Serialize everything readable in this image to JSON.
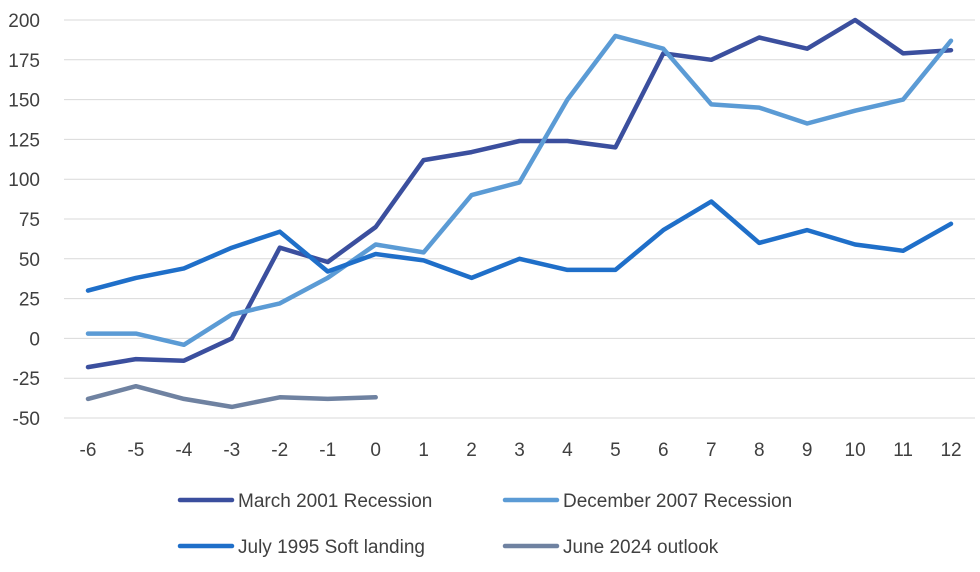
{
  "chart_data": {
    "type": "line",
    "title": "",
    "xlabel": "",
    "ylabel": "",
    "x": [
      -6,
      -5,
      -4,
      -3,
      -2,
      -1,
      0,
      1,
      2,
      3,
      4,
      5,
      6,
      7,
      8,
      9,
      10,
      11,
      12
    ],
    "ylim": [
      -50,
      200
    ],
    "yticks": [
      -50,
      -25,
      0,
      25,
      50,
      75,
      100,
      125,
      150,
      175,
      200
    ],
    "grid": "horizontal",
    "legend_position": "bottom",
    "series": [
      {
        "name": "March 2001 Recession",
        "color": "#3B4F9E",
        "values": [
          -18,
          -13,
          -14,
          0,
          57,
          48,
          70,
          112,
          117,
          124,
          124,
          120,
          179,
          175,
          189,
          182,
          200,
          179,
          181
        ]
      },
      {
        "name": "December 2007 Recession",
        "color": "#5B9BD5",
        "values": [
          3,
          3,
          -4,
          15,
          22,
          38,
          59,
          54,
          90,
          98,
          150,
          190,
          182,
          147,
          145,
          135,
          143,
          150,
          187
        ]
      },
      {
        "name": "July 1995 Soft landing",
        "color": "#1F6FC9",
        "values": [
          30,
          38,
          44,
          57,
          67,
          42,
          53,
          49,
          38,
          50,
          43,
          43,
          68,
          86,
          60,
          68,
          59,
          55,
          72
        ]
      },
      {
        "name": "June 2024 outlook",
        "color": "#6F82A1",
        "values": [
          -38,
          -30,
          -38,
          -43,
          -37,
          -38,
          -37,
          null,
          null,
          null,
          null,
          null,
          null,
          null,
          null,
          null,
          null,
          null,
          null
        ]
      }
    ]
  }
}
